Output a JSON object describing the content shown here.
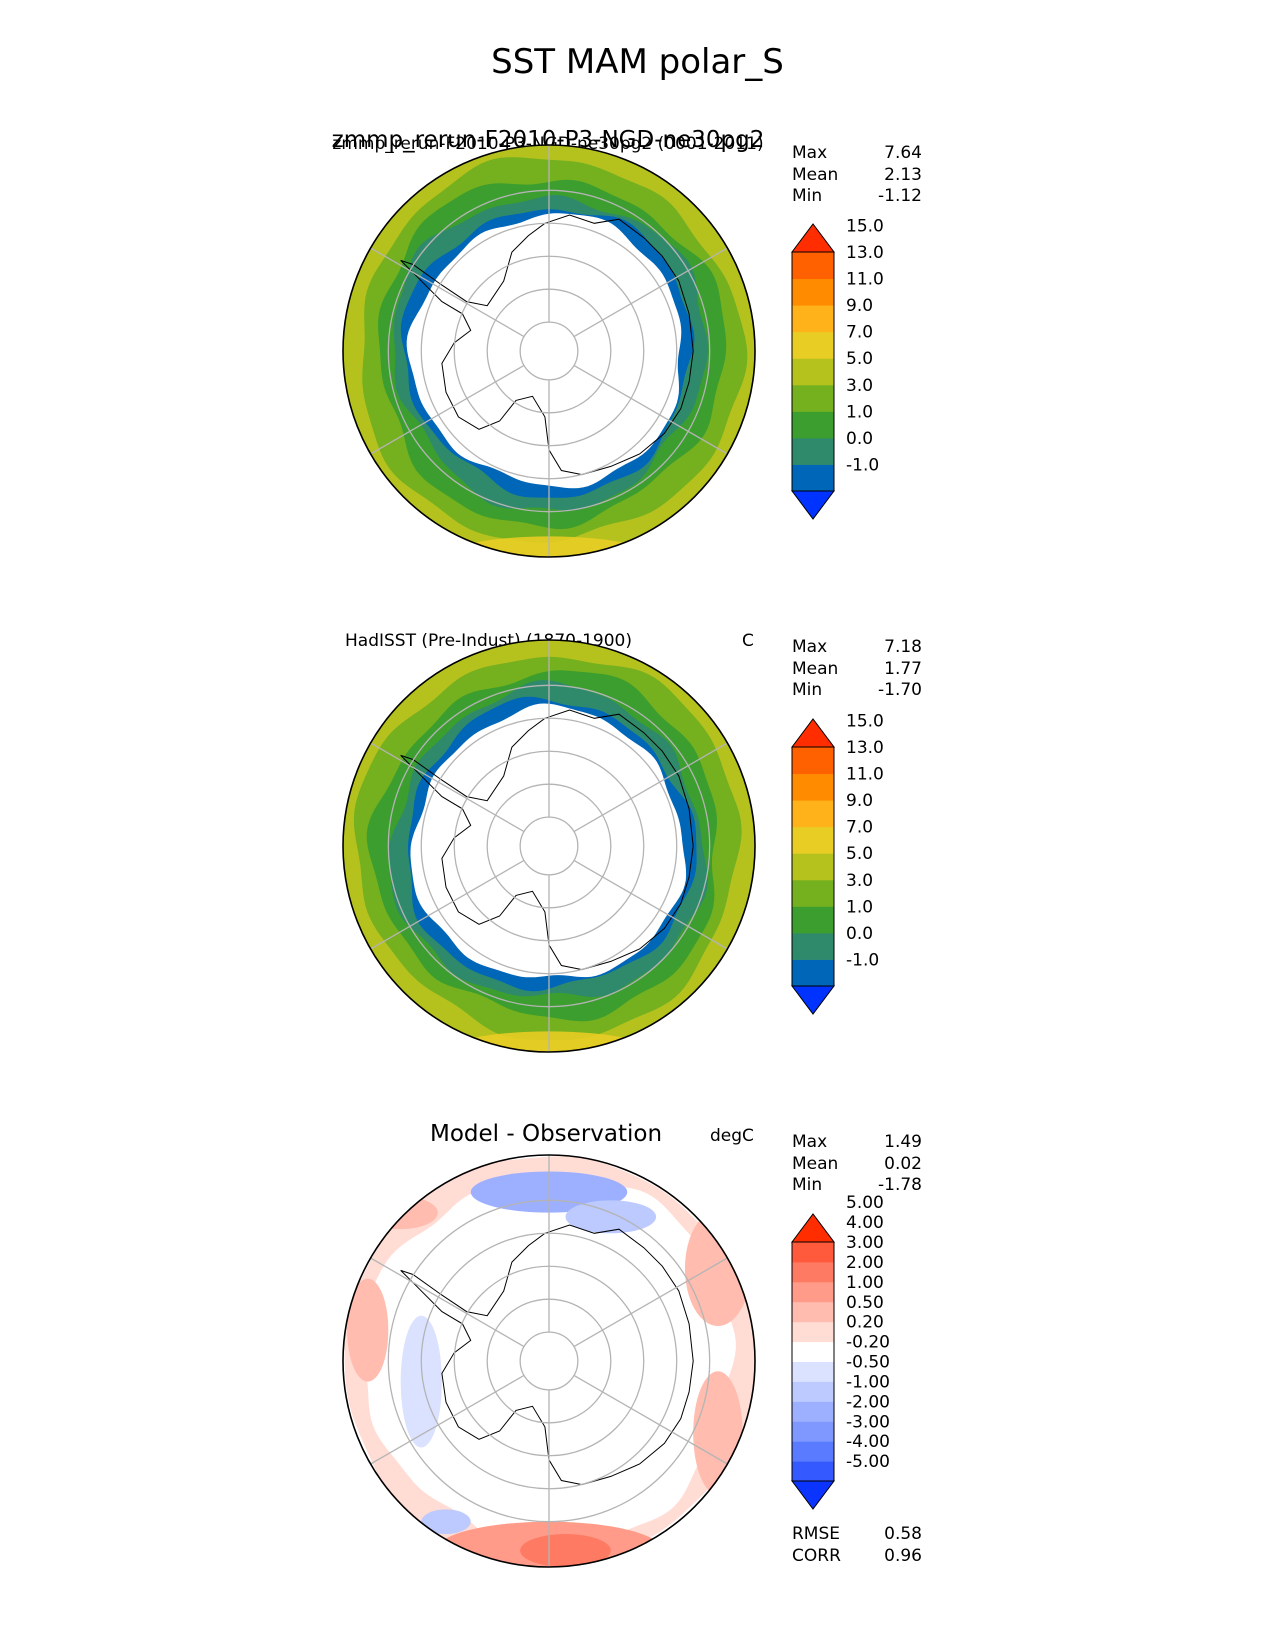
{
  "figure_title": "SST MAM polar_S",
  "colors": {
    "sst_levels": [
      "#0033ff",
      "#0066b8",
      "#2f8a6c",
      "#3b9e2e",
      "#75b01e",
      "#b5c21e",
      "#e8cd24",
      "#ffb21a",
      "#ff8c00",
      "#ff6100",
      "#ff2d00"
    ],
    "diff_levels": [
      "#0b35ff",
      "#3359ff",
      "#5a7bff",
      "#7e98ff",
      "#9db0ff",
      "#bccaff",
      "#dbe2ff",
      "#ffffff",
      "#ffdcd4",
      "#ffbcaf",
      "#ff9b88",
      "#ff7a62",
      "#ff5a3c",
      "#ff2d00"
    ],
    "land": "#ffffff",
    "grid": "#b4b4b4"
  },
  "panels": [
    {
      "title": "zmmp_rerun-F2010-P3-NGD-ne30pg2",
      "overlay_title": "zmmp_rerun-F2010-P3-NGD-ne30pg2 (0001-2011)",
      "units": "",
      "stats": {
        "max_label": "Max",
        "max": "7.64",
        "mean_label": "Mean",
        "mean": "2.13",
        "min_label": "Min",
        "min": "-1.12"
      },
      "colorbar_ticks": [
        "-1.0",
        "0.0",
        "1.0",
        "3.0",
        "5.0",
        "7.0",
        "9.0",
        "11.0",
        "13.0",
        "15.0"
      ]
    },
    {
      "title": "HadISST (Pre-Indust) (1870-1900)",
      "units": "C",
      "stats": {
        "max_label": "Max",
        "max": "7.18",
        "mean_label": "Mean",
        "mean": "1.77",
        "min_label": "Min",
        "min": "-1.70"
      },
      "colorbar_ticks": [
        "-1.0",
        "0.0",
        "1.0",
        "3.0",
        "5.0",
        "7.0",
        "9.0",
        "11.0",
        "13.0",
        "15.0"
      ]
    },
    {
      "title": "Model - Observation",
      "units": "degC",
      "stats": {
        "max_label": "Max",
        "max": "1.49",
        "mean_label": "Mean",
        "mean": "0.02",
        "min_label": "Min",
        "min": "-1.78"
      },
      "colorbar_ticks": [
        "-5.00",
        "-4.00",
        "-3.00",
        "-2.00",
        "-1.00",
        "-0.50",
        "-0.20",
        "0.20",
        "0.50",
        "1.00",
        "2.00",
        "3.00",
        "4.00",
        "5.00"
      ],
      "metrics": {
        "rmse_label": "RMSE",
        "rmse": "0.58",
        "corr_label": "CORR",
        "corr": "0.96"
      }
    }
  ]
}
